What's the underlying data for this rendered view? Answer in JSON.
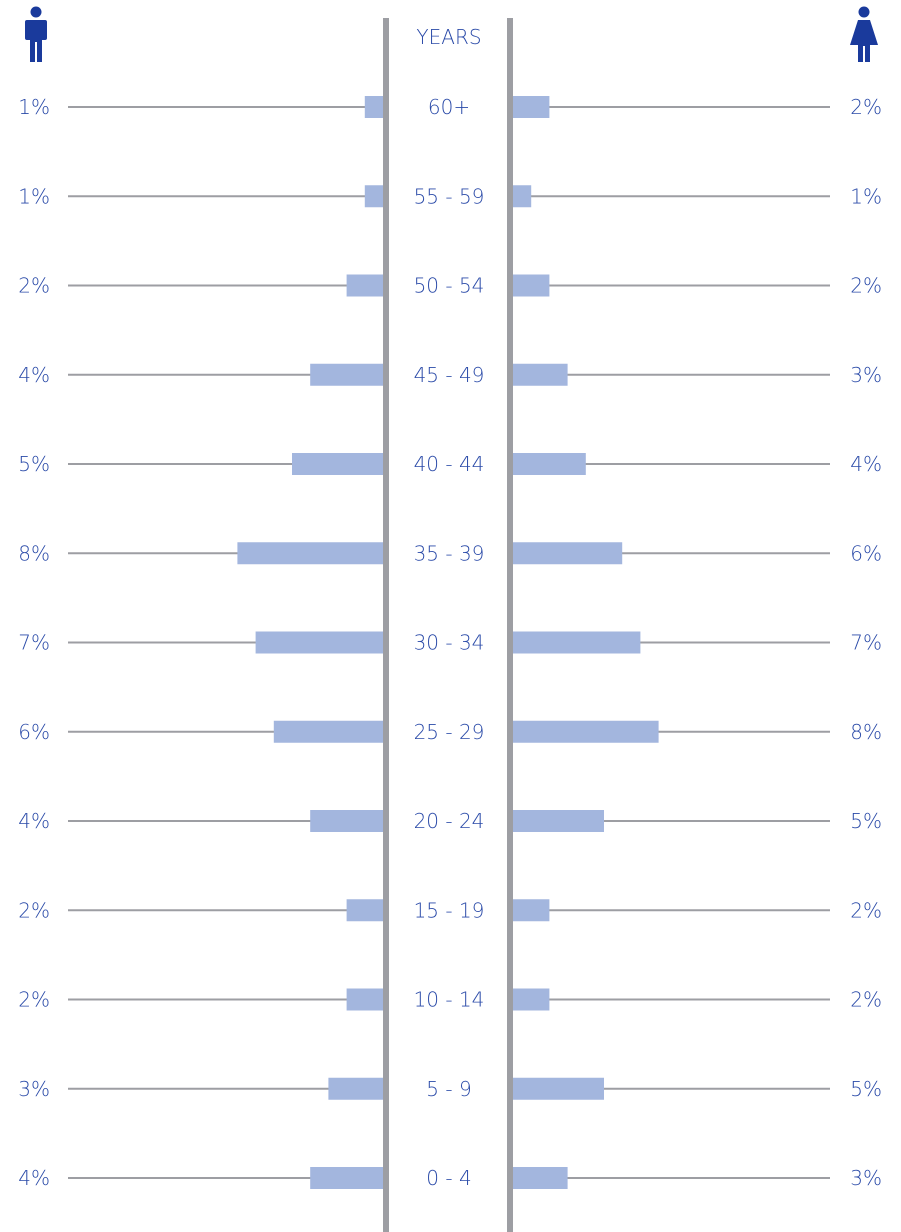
{
  "chart_data": {
    "type": "bar",
    "subtype": "population-pyramid",
    "center_header": "YEARS",
    "categories": [
      "60+",
      "55 - 59",
      "50 - 54",
      "45 - 49",
      "40 - 44",
      "35 - 39",
      "30 - 34",
      "25 - 29",
      "20 - 24",
      "15 - 19",
      "10 - 14",
      "5 - 9",
      "0 - 4"
    ],
    "series": [
      {
        "side": "left",
        "icon": "male-icon",
        "values": [
          1,
          1,
          2,
          4,
          5,
          8,
          7,
          6,
          4,
          2,
          2,
          3,
          4
        ],
        "value_labels": [
          "1%",
          "1%",
          "2%",
          "4%",
          "5%",
          "8%",
          "7%",
          "6%",
          "4%",
          "2%",
          "2%",
          "3%",
          "4%"
        ]
      },
      {
        "side": "right",
        "icon": "female-icon",
        "values": [
          2,
          1,
          2,
          3,
          4,
          6,
          7,
          8,
          5,
          2,
          2,
          5,
          3
        ],
        "value_labels": [
          "2%",
          "1%",
          "2%",
          "3%",
          "4%",
          "6%",
          "7%",
          "8%",
          "5%",
          "2%",
          "2%",
          "5%",
          "3%"
        ]
      }
    ],
    "unit": "%",
    "grid": false,
    "legend": "none"
  },
  "colors": {
    "text": "#2a4aa8",
    "bar": "#a3b6de",
    "line": "#9d9ea3",
    "axis": "#9d9ea3",
    "icon": "#1a3a9c"
  }
}
